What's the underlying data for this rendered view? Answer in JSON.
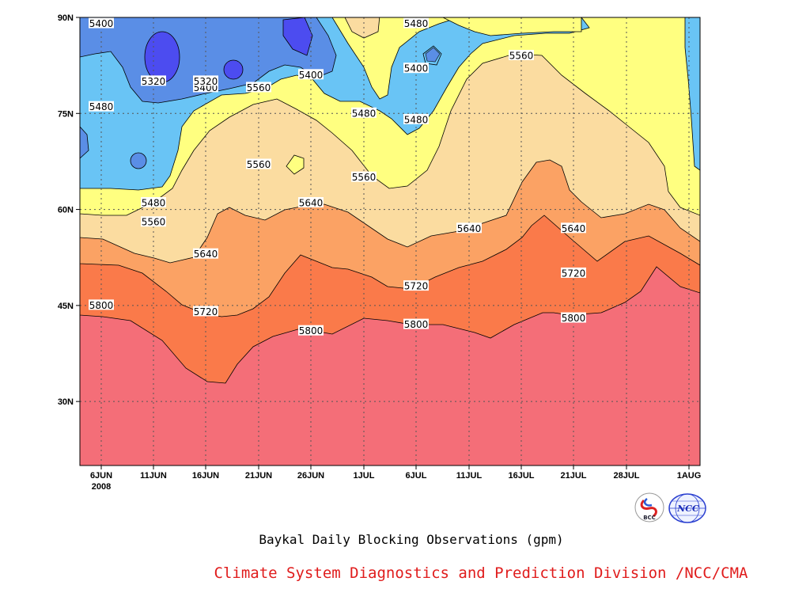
{
  "chart_data": {
    "type": "contour",
    "x_axis": {
      "ticks": [
        "6JUN",
        "11JUN",
        "16JUN",
        "21JUN",
        "26JUN",
        "1JUL",
        "6JUL",
        "11JUL",
        "16JUL",
        "21JUL",
        "28JUL",
        "1AUG"
      ],
      "year_label": "2008"
    },
    "y_axis": {
      "ticks": [
        "30N",
        "45N",
        "60N",
        "75N",
        "90N"
      ],
      "ylim_deg": [
        20,
        90
      ]
    },
    "contour_levels": [
      5320,
      5400,
      5480,
      5560,
      5640,
      5720,
      5800
    ],
    "contour_labels": [
      {
        "text": "5400",
        "x": "6JUN",
        "y_deg": 89
      },
      {
        "text": "5320",
        "x": "11JUN",
        "y_deg": 80
      },
      {
        "text": "5400",
        "x": "16JUN",
        "y_deg": 79
      },
      {
        "text": "5320",
        "x": "16JUN",
        "y_deg": 80
      },
      {
        "text": "5400",
        "x": "26JUN",
        "y_deg": 81
      },
      {
        "text": "5560",
        "x": "21JUN",
        "y_deg": 79
      },
      {
        "text": "5480",
        "x": "6JUN",
        "y_deg": 76
      },
      {
        "text": "5480",
        "x": "1JUL",
        "y_deg": 75
      },
      {
        "text": "5480",
        "x": "6JUL",
        "y_deg": 74
      },
      {
        "text": "5400",
        "x": "6JUL",
        "y_deg": 82
      },
      {
        "text": "5480",
        "x": "6JUL",
        "y_deg": 89
      },
      {
        "text": "5560",
        "x": "16JUL",
        "y_deg": 84
      },
      {
        "text": "5560",
        "x": "21JUN",
        "y_deg": 67
      },
      {
        "text": "5560",
        "x": "1JUL",
        "y_deg": 65
      },
      {
        "text": "5480",
        "x": "11JUN",
        "y_deg": 61
      },
      {
        "text": "5640",
        "x": "26JUN",
        "y_deg": 61
      },
      {
        "text": "5560",
        "x": "11JUN",
        "y_deg": 58
      },
      {
        "text": "5640",
        "x": "11JUL",
        "y_deg": 57
      },
      {
        "text": "5640",
        "x": "21JUL",
        "y_deg": 57
      },
      {
        "text": "5640",
        "x": "16JUN",
        "y_deg": 53
      },
      {
        "text": "5720",
        "x": "6JUL",
        "y_deg": 48
      },
      {
        "text": "5720",
        "x": "21JUL",
        "y_deg": 50
      },
      {
        "text": "5800",
        "x": "6JUN",
        "y_deg": 45
      },
      {
        "text": "5720",
        "x": "16JUN",
        "y_deg": 44
      },
      {
        "text": "5800",
        "x": "26JUN",
        "y_deg": 41
      },
      {
        "text": "5800",
        "x": "6JUL",
        "y_deg": 42
      },
      {
        "text": "5800",
        "x": "21JUL",
        "y_deg": 43
      }
    ],
    "fill_colors": {
      "below_5320": "#4c4cf0",
      "5320_5400": "#5a8ee6",
      "5400_5480": "#69c4f5",
      "5480_5560": "#ffff80",
      "5560_5640": "#fbdca0",
      "5640_5720": "#fba264",
      "5720_5800": "#fa7a4a",
      "above_5800": "#f46e78"
    },
    "grid": "dotted",
    "title": "Baykal Daily Blocking Observations (gpm)",
    "credit": "Climate System Diagnostics and Prediction Division /NCC/CMA"
  },
  "logos": {
    "bcc": "BCC",
    "ncc": "NCC"
  }
}
